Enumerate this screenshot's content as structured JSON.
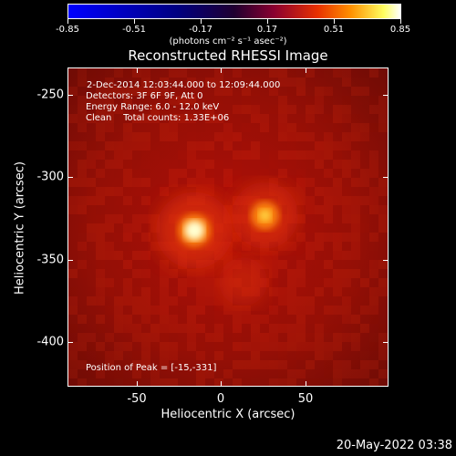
{
  "colorbar": {
    "ticks": [
      "-0.85",
      "-0.51",
      "-0.17",
      "0.17",
      "0.51",
      "0.85"
    ],
    "units": "(photons cm⁻² s⁻¹ asec⁻²)"
  },
  "title": "Reconstructed RHESSI Image",
  "info": {
    "line1": "2-Dec-2014 12:03:44.000 to 12:09:44.000",
    "line2": "Detectors: 3F 6F 9F, Att 0",
    "line3": "Energy Range: 6.0 - 12.0 keV",
    "line4": "Clean    Total counts: 1.33E+06",
    "peak": "Position of Peak = [-15,-331]"
  },
  "chart_data": {
    "type": "heatmap",
    "title": "Reconstructed RHESSI Image",
    "xlabel": "Heliocentric X (arcsec)",
    "ylabel": "Heliocentric Y (arcsec)",
    "xlim": [
      -90,
      100
    ],
    "ylim": [
      -425,
      -233
    ],
    "xticks": [
      -50,
      0,
      50
    ],
    "yticks": [
      -250,
      -300,
      -350,
      -400
    ],
    "colorbar_range": [
      -0.85,
      0.85
    ],
    "colorbar_ticks": [
      -0.85,
      -0.51,
      -0.17,
      0.17,
      0.51,
      0.85
    ],
    "colormap": "red-temperature",
    "sources": [
      {
        "x": -15,
        "y": -331,
        "relative_intensity": 1.0
      },
      {
        "x": 27,
        "y": -322,
        "relative_intensity": 0.75
      },
      {
        "x": 14,
        "y": -362,
        "relative_intensity": 0.3
      }
    ],
    "peak_position": [
      -15,
      -331
    ]
  },
  "axes": {
    "xlabel": "Heliocentric X (arcsec)",
    "ylabel": "Heliocentric Y (arcsec)",
    "xticks": [
      "-50",
      "0",
      "50"
    ],
    "yticks": [
      "-250",
      "-300",
      "-350",
      "-400"
    ]
  },
  "footer_date": "20-May-2022 03:38"
}
